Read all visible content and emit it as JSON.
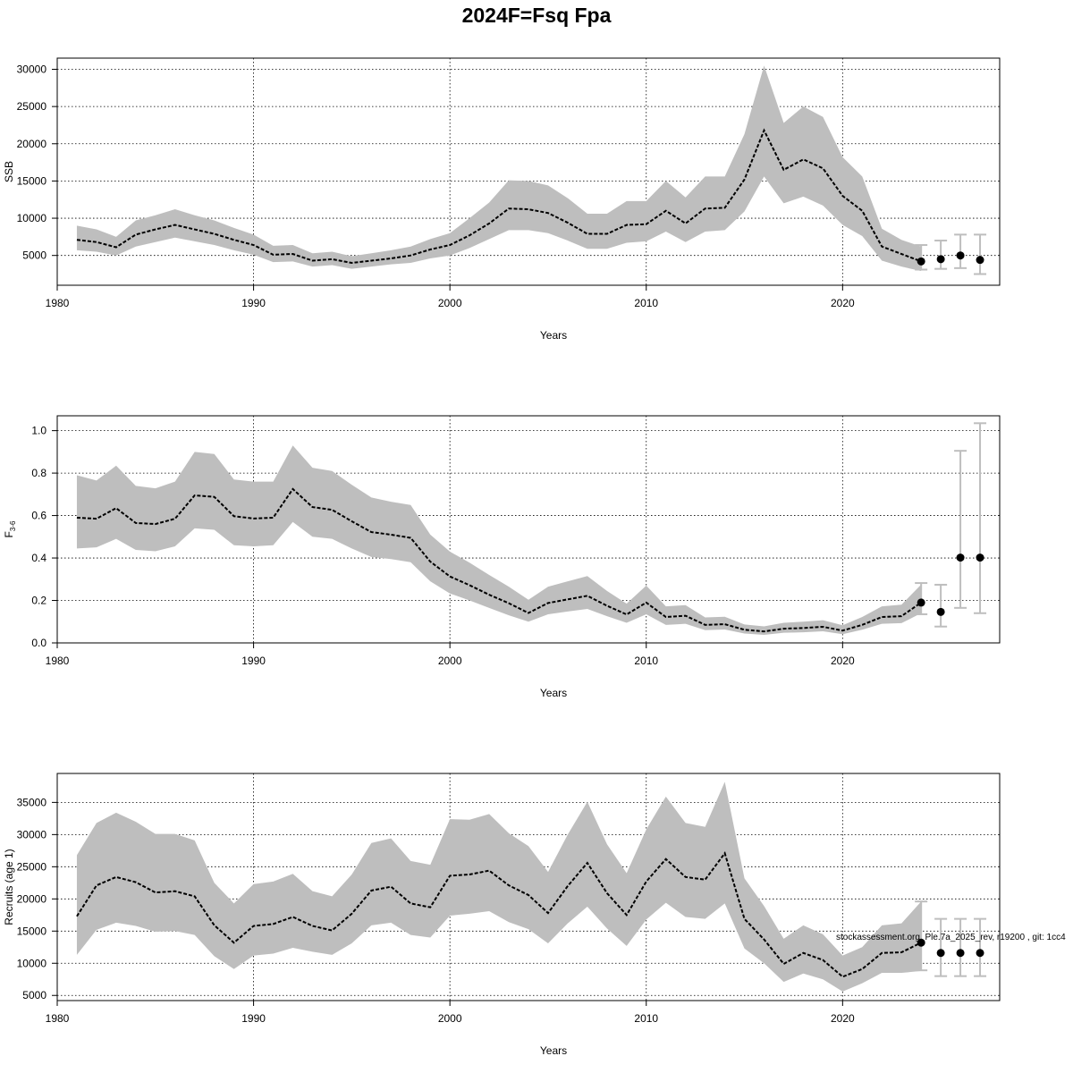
{
  "title": "2024F=Fsq Fpa",
  "footnote": "stockassessment.org, Ple.7a_2025_rev, r19200 , git: 1cc4",
  "colors": {
    "band": "#bebebe",
    "line": "#000000",
    "errorbar": "#bebebe",
    "grid": "#000000"
  },
  "chart_data": [
    {
      "type": "line",
      "ylabel": "SSB",
      "xlabel": "Years",
      "xlim": [
        1980,
        2028
      ],
      "ylim": [
        1000,
        31500
      ],
      "x_ticks": [
        1980,
        1990,
        2000,
        2010,
        2020
      ],
      "x_tick_labels": [
        "1980",
        "1990",
        "2000",
        "2010",
        "2020"
      ],
      "y_ticks": [
        5000,
        10000,
        15000,
        20000,
        25000,
        30000
      ],
      "y_tick_labels": [
        "5000",
        "10000",
        "15000",
        "20000",
        "25000",
        "30000"
      ],
      "grid": true,
      "series": [
        {
          "x": [
            1981,
            1982,
            1983,
            1984,
            1985,
            1986,
            1987,
            1988,
            1989,
            1990,
            1991,
            1992,
            1993,
            1994,
            1995,
            1996,
            1997,
            1998,
            1999,
            2000,
            2001,
            2002,
            2003,
            2004,
            2005,
            2006,
            2007,
            2008,
            2009,
            2010,
            2011,
            2012,
            2013,
            2014,
            2015,
            2016,
            2017,
            2018,
            2019,
            2020,
            2021,
            2022,
            2023,
            2024
          ],
          "y": [
            7100,
            6800,
            6100,
            7800,
            8500,
            9100,
            8500,
            7900,
            7100,
            6400,
            5100,
            5200,
            4300,
            4500,
            4000,
            4300,
            4600,
            5000,
            5800,
            6400,
            7700,
            9300,
            11300,
            11200,
            10700,
            9400,
            7900,
            7900,
            9100,
            9200,
            11000,
            9300,
            11300,
            11400,
            15200,
            21800,
            16500,
            17900,
            16700,
            13000,
            11000,
            6200,
            5200,
            4200
          ],
          "lower": [
            5700,
            5500,
            5000,
            6200,
            6800,
            7400,
            6900,
            6400,
            5700,
            5100,
            4100,
            4200,
            3500,
            3700,
            3200,
            3500,
            3800,
            4000,
            4600,
            5000,
            6000,
            7200,
            8400,
            8400,
            8000,
            7000,
            5900,
            5900,
            6700,
            6900,
            8200,
            6800,
            8200,
            8400,
            10900,
            15600,
            12000,
            12900,
            11700,
            9100,
            7600,
            4300,
            3500,
            2900
          ],
          "upper": [
            9000,
            8500,
            7500,
            9700,
            10400,
            11200,
            10400,
            9700,
            8700,
            7800,
            6300,
            6400,
            5300,
            5500,
            4900,
            5300,
            5700,
            6200,
            7200,
            8000,
            10000,
            12100,
            15100,
            15000,
            14400,
            12700,
            10600,
            10600,
            12300,
            12300,
            15000,
            12800,
            15600,
            15600,
            21300,
            30500,
            22800,
            25000,
            23600,
            18200,
            15600,
            8600,
            7100,
            6200
          ]
        }
      ],
      "forecast": {
        "x": [
          2024,
          2025,
          2026,
          2027
        ],
        "y": [
          4200,
          4500,
          5000,
          4400
        ],
        "lower": [
          3100,
          3200,
          3300,
          2500
        ],
        "upper": [
          6400,
          7000,
          7800,
          7800
        ]
      }
    },
    {
      "type": "line",
      "ylabel": "F",
      "ylabel_subscript": "3-6",
      "xlabel": "Years",
      "xlim": [
        1980,
        2028
      ],
      "ylim": [
        0.0,
        1.07
      ],
      "x_ticks": [
        1980,
        1990,
        2000,
        2010,
        2020
      ],
      "x_tick_labels": [
        "1980",
        "1990",
        "2000",
        "2010",
        "2020"
      ],
      "y_ticks": [
        0.0,
        0.2,
        0.4,
        0.6,
        0.8,
        1.0
      ],
      "y_tick_labels": [
        "0.0",
        "0.2",
        "0.4",
        "0.6",
        "0.8",
        "1.0"
      ],
      "grid": true,
      "series": [
        {
          "x": [
            1981,
            1982,
            1983,
            1984,
            1985,
            1986,
            1987,
            1988,
            1989,
            1990,
            1991,
            1992,
            1993,
            1994,
            1995,
            1996,
            1997,
            1998,
            1999,
            2000,
            2001,
            2002,
            2003,
            2004,
            2005,
            2006,
            2007,
            2008,
            2009,
            2010,
            2011,
            2012,
            2013,
            2014,
            2015,
            2016,
            2017,
            2018,
            2019,
            2020,
            2021,
            2022,
            2023,
            2024
          ],
          "y": [
            0.59,
            0.585,
            0.635,
            0.565,
            0.56,
            0.585,
            0.695,
            0.688,
            0.597,
            0.586,
            0.59,
            0.725,
            0.64,
            0.627,
            0.573,
            0.522,
            0.51,
            0.495,
            0.383,
            0.313,
            0.272,
            0.227,
            0.187,
            0.141,
            0.188,
            0.205,
            0.222,
            0.175,
            0.134,
            0.19,
            0.122,
            0.128,
            0.085,
            0.088,
            0.062,
            0.054,
            0.067,
            0.07,
            0.076,
            0.058,
            0.085,
            0.122,
            0.126,
            0.19
          ],
          "lower": [
            0.445,
            0.45,
            0.49,
            0.438,
            0.432,
            0.455,
            0.54,
            0.533,
            0.46,
            0.455,
            0.46,
            0.57,
            0.5,
            0.49,
            0.445,
            0.405,
            0.395,
            0.38,
            0.29,
            0.233,
            0.2,
            0.165,
            0.13,
            0.1,
            0.135,
            0.148,
            0.16,
            0.126,
            0.095,
            0.135,
            0.085,
            0.09,
            0.06,
            0.063,
            0.044,
            0.038,
            0.048,
            0.05,
            0.055,
            0.041,
            0.062,
            0.09,
            0.093,
            0.14
          ],
          "upper": [
            0.79,
            0.765,
            0.835,
            0.74,
            0.728,
            0.76,
            0.9,
            0.89,
            0.77,
            0.76,
            0.76,
            0.93,
            0.825,
            0.81,
            0.745,
            0.685,
            0.665,
            0.65,
            0.51,
            0.43,
            0.378,
            0.32,
            0.265,
            0.203,
            0.265,
            0.29,
            0.315,
            0.245,
            0.185,
            0.27,
            0.172,
            0.178,
            0.12,
            0.123,
            0.087,
            0.078,
            0.095,
            0.1,
            0.107,
            0.083,
            0.122,
            0.172,
            0.18,
            0.275
          ]
        }
      ],
      "forecast": {
        "x": [
          2024,
          2025,
          2026,
          2027
        ],
        "y": [
          0.19,
          0.146,
          0.402,
          0.402
        ],
        "lower": [
          0.135,
          0.077,
          0.165,
          0.14
        ],
        "upper": [
          0.282,
          0.274,
          0.905,
          1.035
        ]
      }
    },
    {
      "type": "line",
      "ylabel": "Recruits (age 1)",
      "xlabel": "Years",
      "xlim": [
        1980,
        2028
      ],
      "ylim": [
        4200,
        39500
      ],
      "x_ticks": [
        1980,
        1990,
        2000,
        2010,
        2020
      ],
      "x_tick_labels": [
        "1980",
        "1990",
        "2000",
        "2010",
        "2020"
      ],
      "y_ticks": [
        5000,
        10000,
        15000,
        20000,
        25000,
        30000,
        35000
      ],
      "y_tick_labels": [
        "5000",
        "10000",
        "15000",
        "20000",
        "25000",
        "30000",
        "35000"
      ],
      "grid": true,
      "series": [
        {
          "x": [
            1981,
            1982,
            1983,
            1984,
            1985,
            1986,
            1987,
            1988,
            1989,
            1990,
            1991,
            1992,
            1993,
            1994,
            1995,
            1996,
            1997,
            1998,
            1999,
            2000,
            2001,
            2002,
            2003,
            2004,
            2005,
            2006,
            2007,
            2008,
            2009,
            2010,
            2011,
            2012,
            2013,
            2014,
            2015,
            2016,
            2017,
            2018,
            2019,
            2020,
            2021,
            2022,
            2023,
            2024
          ],
          "y": [
            17300,
            22100,
            23400,
            22600,
            21000,
            21200,
            20400,
            15900,
            13200,
            15800,
            16100,
            17200,
            15800,
            15100,
            17700,
            21300,
            21900,
            19300,
            18700,
            23600,
            23800,
            24400,
            22100,
            20600,
            17800,
            22000,
            25600,
            20900,
            17500,
            22700,
            26200,
            23400,
            23000,
            27100,
            16900,
            13700,
            9900,
            11600,
            10500,
            7900,
            9100,
            11600,
            11700,
            13200
          ],
          "lower": [
            11300,
            15200,
            16300,
            15800,
            14900,
            15000,
            14400,
            11100,
            9100,
            11200,
            11500,
            12400,
            11800,
            11300,
            13100,
            15900,
            16300,
            14400,
            14000,
            17400,
            17700,
            18100,
            16400,
            15300,
            13100,
            16200,
            18800,
            15400,
            12700,
            16800,
            19400,
            17200,
            16900,
            19300,
            12300,
            10000,
            7100,
            8400,
            7500,
            5600,
            6900,
            8500,
            8500,
            8800
          ],
          "upper": [
            26800,
            31800,
            33400,
            32000,
            30100,
            30100,
            29100,
            22500,
            19300,
            22300,
            22700,
            23900,
            21200,
            20400,
            23800,
            28700,
            29400,
            25900,
            25300,
            32400,
            32300,
            33200,
            30200,
            28200,
            24200,
            30000,
            35100,
            28500,
            24000,
            30800,
            35900,
            31800,
            31200,
            38200,
            23200,
            18900,
            13800,
            15900,
            14500,
            11200,
            12500,
            15900,
            16200,
            19600
          ]
        }
      ],
      "forecast": {
        "x": [
          2024,
          2025,
          2026,
          2027
        ],
        "y": [
          13200,
          11600,
          11600,
          11600
        ],
        "lower": [
          8900,
          8000,
          8000,
          8000
        ],
        "upper": [
          19600,
          16900,
          16900,
          16900
        ]
      }
    }
  ]
}
